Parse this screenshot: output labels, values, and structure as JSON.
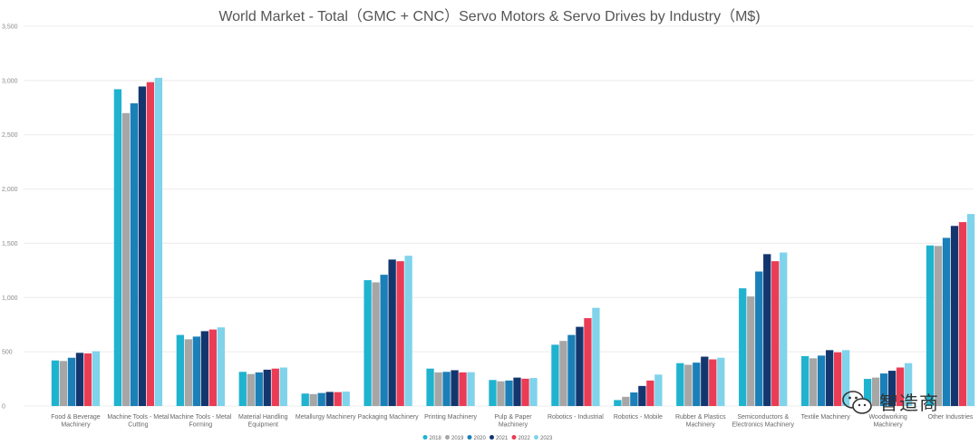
{
  "chart_data": {
    "type": "bar",
    "title": "World Market - Total（GMC + CNC）Servo Motors & Servo Drives by Industry（M$)",
    "xlabel": "",
    "ylabel": "",
    "ylim": [
      0,
      3500
    ],
    "yticks": [
      "0",
      "500",
      "1,000",
      "1,500",
      "2,000",
      "2,500",
      "3,000",
      "3,500"
    ],
    "ytick_values": [
      0,
      500,
      1000,
      1500,
      2000,
      2500,
      3000,
      3500
    ],
    "grid": true,
    "legend_position": "bottom",
    "categories": [
      [
        "Food & Beverage",
        "Machinery"
      ],
      [
        "Machine Tools - Metal",
        "Cutting"
      ],
      [
        "Machine Tools - Metal",
        "Forming"
      ],
      [
        "Material Handling",
        "Equipment"
      ],
      [
        "Metallurgy Machinery"
      ],
      [
        "Packaging Machinery"
      ],
      [
        "Printing Machinery"
      ],
      [
        "Pulp & Paper",
        "Machinery"
      ],
      [
        "Robotics - Industrial"
      ],
      [
        "Robotics - Mobile"
      ],
      [
        "Rubber & Plastics",
        "Machinery"
      ],
      [
        "Semiconductors &",
        "Electronics Machinery"
      ],
      [
        "Textile Machinery"
      ],
      [
        "Woodworking",
        "Machinery"
      ],
      [
        "Other Industries"
      ]
    ],
    "series": [
      {
        "name": "2018",
        "color": "#1fb3cf",
        "values": [
          420,
          2920,
          655,
          315,
          115,
          1160,
          345,
          240,
          565,
          55,
          395,
          1085,
          460,
          250,
          1480
        ]
      },
      {
        "name": "2019",
        "color": "#a6a6a6",
        "values": [
          415,
          2700,
          615,
          295,
          110,
          1140,
          310,
          228,
          600,
          85,
          380,
          1010,
          440,
          262,
          1475
        ]
      },
      {
        "name": "2020",
        "color": "#1b7fb8",
        "values": [
          445,
          2790,
          640,
          310,
          120,
          1210,
          315,
          235,
          655,
          125,
          400,
          1240,
          465,
          300,
          1550
        ]
      },
      {
        "name": "2021",
        "color": "#14366e",
        "values": [
          490,
          2945,
          690,
          335,
          130,
          1350,
          330,
          262,
          730,
          185,
          455,
          1400,
          515,
          325,
          1660
        ]
      },
      {
        "name": "2022",
        "color": "#eb3c55",
        "values": [
          485,
          2985,
          705,
          345,
          128,
          1335,
          310,
          252,
          810,
          235,
          430,
          1335,
          495,
          355,
          1695
        ]
      },
      {
        "name": "2023",
        "color": "#7fd3ea",
        "values": [
          505,
          3025,
          725,
          355,
          133,
          1385,
          312,
          258,
          905,
          290,
          445,
          1415,
          515,
          395,
          1770
        ]
      }
    ]
  },
  "watermark": {
    "icon": "wechat-icon",
    "text": "智造商"
  }
}
